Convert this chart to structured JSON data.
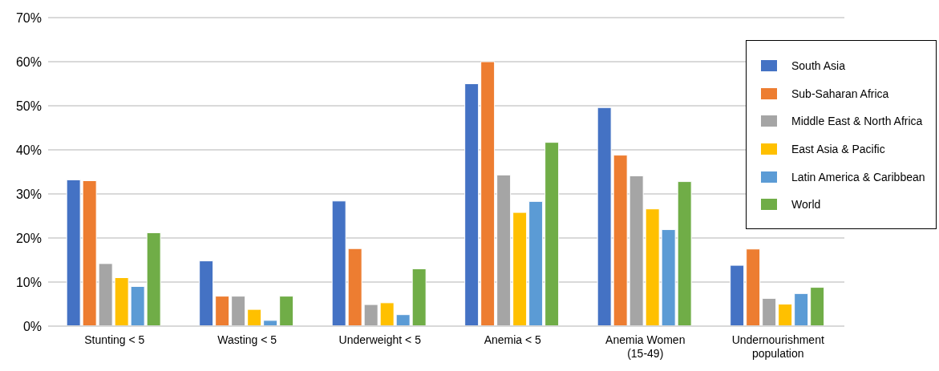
{
  "chart_data": {
    "type": "bar",
    "categories": [
      "Stunting < 5",
      "Wasting < 5",
      "Underweight < 5",
      "Anemia < 5",
      "Anemia Women (15-49)",
      "Undernourishment population"
    ],
    "series": [
      {
        "name": "South Asia",
        "color": "#4472c4",
        "values": [
          33.2,
          14.8,
          28.4,
          55,
          49.6,
          13.8
        ]
      },
      {
        "name": "Sub-Saharan Africa",
        "color": "#ed7d31",
        "values": [
          33,
          6.8,
          17.6,
          60,
          38.8,
          17.5
        ]
      },
      {
        "name": "Middle East & North Africa",
        "color": "#a5a5a5",
        "values": [
          14.2,
          6.8,
          4.9,
          34.3,
          34.1,
          6.3
        ]
      },
      {
        "name": "East Asia & Pacific",
        "color": "#ffc000",
        "values": [
          11,
          3.8,
          5.3,
          25.8,
          26.6,
          5
        ]
      },
      {
        "name": "Latin America & Caribbean",
        "color": "#5b9bd5",
        "values": [
          9,
          1.3,
          2.6,
          28.3,
          21.9,
          7.4
        ]
      },
      {
        "name": "World",
        "color": "#70ad47",
        "values": [
          21.2,
          6.8,
          13,
          41.7,
          32.8,
          8.8
        ]
      }
    ],
    "ylim": [
      0,
      70
    ],
    "yticks": [
      {
        "value": 0,
        "label": "0%"
      },
      {
        "value": 10,
        "label": "10%"
      },
      {
        "value": 20,
        "label": "20%"
      },
      {
        "value": 30,
        "label": "30%"
      },
      {
        "value": 40,
        "label": "40%"
      },
      {
        "value": 50,
        "label": "50%"
      },
      {
        "value": 60,
        "label": "60%"
      },
      {
        "value": 70,
        "label": "70%"
      }
    ],
    "grid": "y",
    "legend": "right"
  }
}
